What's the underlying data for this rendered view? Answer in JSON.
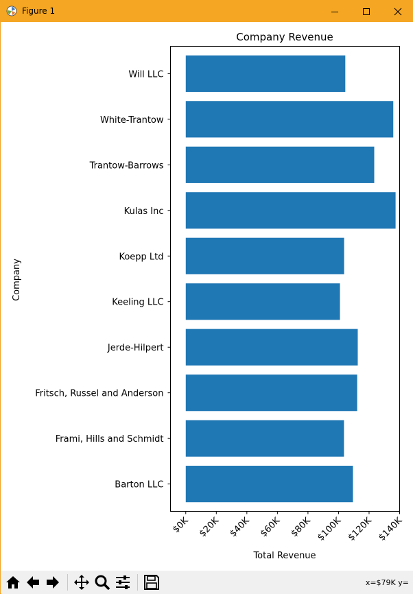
{
  "window": {
    "title": "Figure 1",
    "accent": "#f5a623",
    "controls": [
      "minimize-icon",
      "maximize-icon",
      "close-icon"
    ]
  },
  "chart_data": {
    "type": "bar",
    "orientation": "horizontal",
    "title": "Company Revenue",
    "xlabel": "Total Revenue",
    "ylabel": "Company",
    "categories": [
      "Barton LLC",
      "Frami, Hills and Schmidt",
      "Fritsch, Russel and Anderson",
      "Jerde-Hilpert",
      "Keeling LLC",
      "Koepp Ltd",
      "Kulas Inc",
      "Trantow-Barrows",
      "White-Trantow",
      "Will LLC"
    ],
    "values": [
      109438,
      103569,
      112214,
      112591,
      100934,
      103660,
      137352,
      123381,
      135841,
      104437
    ],
    "xlim": [
      -10000,
      140000
    ],
    "xticks": [
      0,
      20000,
      40000,
      60000,
      80000,
      100000,
      120000,
      140000
    ],
    "xtick_labels": [
      "$0K",
      "$20K",
      "$40K",
      "$60K",
      "$80K",
      "$100K",
      "$120K",
      "$140K"
    ],
    "bar_color": "#1f77b4",
    "grid": false,
    "legend": "none"
  },
  "toolbar": {
    "buttons": [
      "home-icon",
      "back-icon",
      "forward-icon",
      "pan-icon",
      "zoom-icon",
      "configure-subplots-icon",
      "save-icon"
    ],
    "coords": "x=$79K y="
  }
}
